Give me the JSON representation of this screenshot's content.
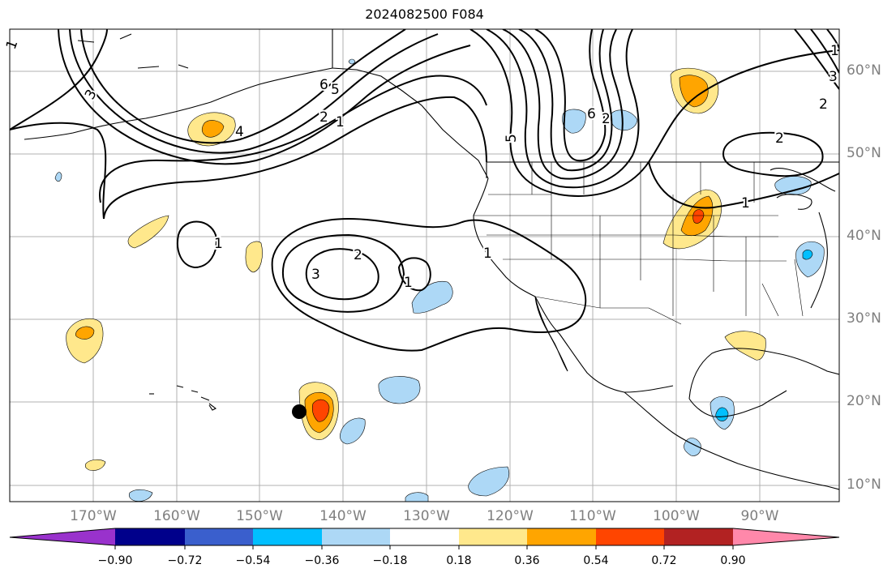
{
  "title": "2024082500 F084",
  "lon_labels": [
    "170°W",
    "160°W",
    "150°W",
    "140°W",
    "130°W",
    "120°W",
    "110°W",
    "100°W",
    "90°W"
  ],
  "lat_labels": [
    "60°N",
    "50°N",
    "40°N",
    "30°N",
    "20°N",
    "10°N"
  ],
  "contour_labels": [
    "1",
    "3",
    "6",
    "5",
    "2",
    "1",
    "4",
    "2",
    "1",
    "1",
    "3",
    "2",
    "1",
    "5",
    "6",
    "2",
    "1",
    "3",
    "2",
    "1"
  ],
  "colorbar": {
    "tick_labels": [
      "−0.90",
      "−0.72",
      "−0.54",
      "−0.36",
      "−0.18",
      "0.18",
      "0.36",
      "0.54",
      "0.72",
      "0.90"
    ],
    "colors": [
      "#9932cc",
      "#00008b",
      "#3a5fcd",
      "#00bfff",
      "#add8f6",
      "#ffffff",
      "#ffe88c",
      "#ffa500",
      "#ff4500",
      "#b22222",
      "#ff88aa"
    ]
  },
  "fill_colors": {
    "light_blue": "#add8f6",
    "cyan": "#00bfff",
    "yellow": "#ffe88c",
    "orange": "#ffa500",
    "red": "#ff4500"
  },
  "marker": "black-dot"
}
